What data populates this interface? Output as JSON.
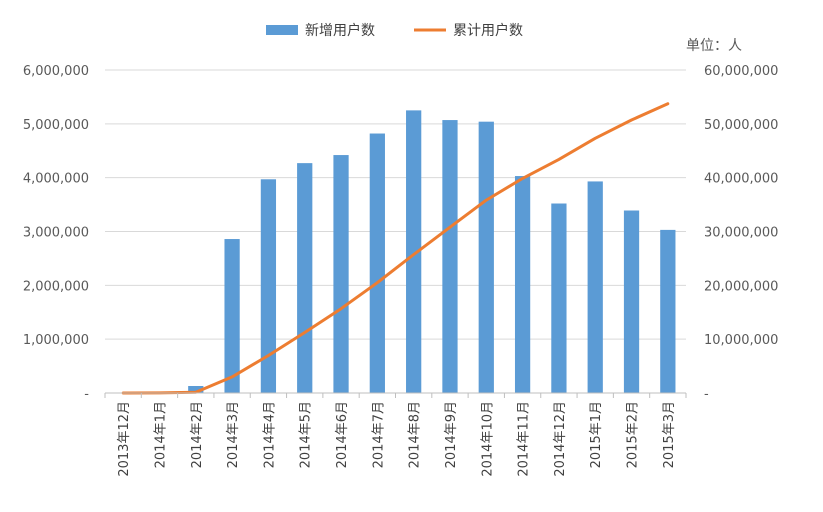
{
  "chart_data": {
    "type": "bar",
    "title": "",
    "unit_label": "单位：人",
    "categories": [
      "2013年12月",
      "2014年1月",
      "2014年2月",
      "2014年3月",
      "2014年4月",
      "2014年5月",
      "2014年6月",
      "2014年7月",
      "2014年8月",
      "2014年9月",
      "2014年10月",
      "2014年11月",
      "2014年12月",
      "2015年1月",
      "2015年2月",
      "2015年3月"
    ],
    "series": [
      {
        "name": "新增用户数",
        "type": "bar",
        "axis": "left",
        "color": "#5B9BD5",
        "values": [
          0,
          10000,
          130000,
          2860000,
          3970000,
          4270000,
          4420000,
          4820000,
          5250000,
          5070000,
          5040000,
          4030000,
          3520000,
          3930000,
          3390000,
          3030000
        ]
      },
      {
        "name": "累计用户数",
        "type": "line",
        "axis": "right",
        "color": "#ED7D31",
        "values": [
          0,
          10000,
          140000,
          3000000,
          6970000,
          11240000,
          15660000,
          20480000,
          25730000,
          30800000,
          35840000,
          39870000,
          43390000,
          47320000,
          50710000,
          53740000
        ]
      }
    ],
    "y_left": {
      "min": 0,
      "max": 6000000,
      "ticks": [
        "-",
        "1,000,000",
        "2,000,000",
        "3,000,000",
        "4,000,000",
        "5,000,000",
        "6,000,000"
      ]
    },
    "y_right": {
      "min": 0,
      "max": 60000000,
      "ticks": [
        "-",
        "10,000,000",
        "20,000,000",
        "30,000,000",
        "40,000,000",
        "50,000,000",
        "60,000,000"
      ]
    },
    "grid": true,
    "legend_position": "top"
  }
}
